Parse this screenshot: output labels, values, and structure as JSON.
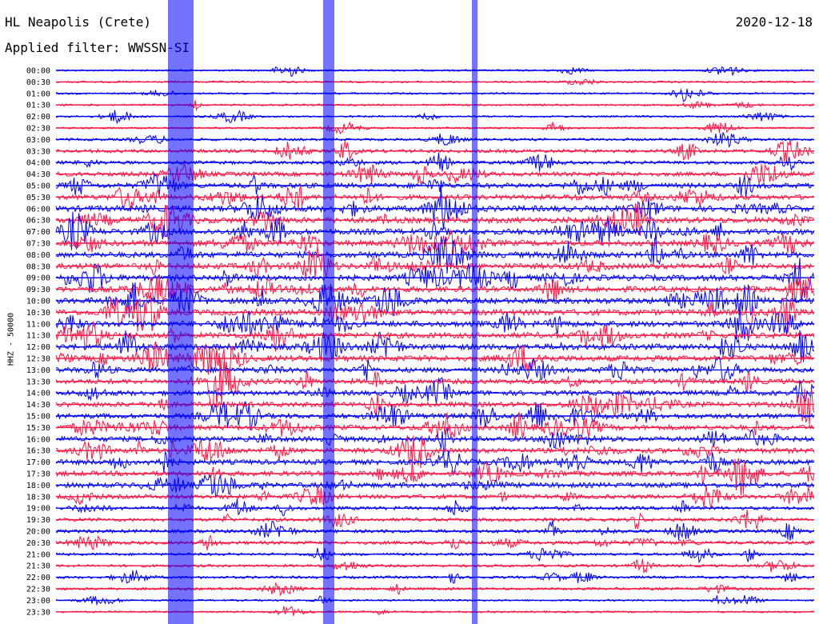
{
  "chart_data": {
    "type": "line",
    "title": "HL Neapolis (Crete)",
    "date": "2020-12-18",
    "subtitle": "Applied filter: WWSSN-SI",
    "ylabel": "HHZ - 50000",
    "colors": {
      "odd": "#0000ff",
      "even": "#ff1744"
    },
    "rows": [
      "00:00",
      "00:30",
      "01:00",
      "01:30",
      "02:00",
      "02:30",
      "03:00",
      "03:30",
      "04:00",
      "04:30",
      "05:00",
      "05:30",
      "06:00",
      "06:30",
      "07:00",
      "07:30",
      "08:00",
      "08:30",
      "09:00",
      "09:30",
      "10:00",
      "10:30",
      "11:00",
      "11:30",
      "12:00",
      "12:30",
      "13:00",
      "13:30",
      "14:00",
      "14:30",
      "15:00",
      "15:30",
      "16:00",
      "16:30",
      "17:00",
      "17:30",
      "18:00",
      "18:30",
      "19:00",
      "19:30",
      "20:00",
      "20:30",
      "21:00",
      "21:30",
      "22:00",
      "22:30",
      "23:00",
      "23:30"
    ],
    "noise_level": [
      1,
      1,
      1,
      1,
      1,
      1,
      2,
      3,
      3,
      4,
      5,
      5,
      6,
      6,
      6,
      6,
      6,
      6,
      6,
      6,
      6,
      6,
      6,
      6,
      6,
      6,
      5,
      5,
      5,
      5,
      5,
      5,
      5,
      5,
      5,
      5,
      5,
      4,
      3,
      3,
      3,
      3,
      2,
      2,
      2,
      2,
      1,
      1
    ]
  }
}
